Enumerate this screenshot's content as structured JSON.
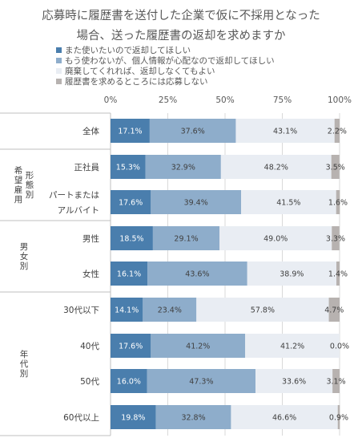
{
  "chart_data": {
    "type": "bar",
    "stacked": true,
    "orientation": "horizontal",
    "title_lines": [
      "応募時に履歴書を送付した企業で仮に不採用となった",
      "場合、送った履歴書の返却を求めますか"
    ],
    "xlim": [
      0,
      100
    ],
    "x_ticks": [
      "0%",
      "25%",
      "50%",
      "75%",
      "100%"
    ],
    "legend_position": "top-left",
    "groups": [
      {
        "label": "",
        "category_indices": [
          0
        ]
      },
      {
        "label": "希望雇用形態別",
        "category_indices": [
          1,
          2
        ]
      },
      {
        "label": "男女別",
        "category_indices": [
          3,
          4
        ]
      },
      {
        "label": "年代別",
        "category_indices": [
          5,
          6,
          7,
          8
        ]
      }
    ],
    "categories": [
      [
        "全体"
      ],
      [
        "正社員"
      ],
      [
        "パートまたは",
        "アルバイト"
      ],
      [
        "男性"
      ],
      [
        "女性"
      ],
      [
        "30代以下"
      ],
      [
        "40代"
      ],
      [
        "50代"
      ],
      [
        "60代以上"
      ]
    ],
    "series": [
      {
        "name": "また使いたいので返却してほしい",
        "color": "#4a7ead",
        "label_color": "#ffffff",
        "values": [
          17.1,
          15.3,
          17.6,
          18.5,
          16.1,
          14.1,
          17.6,
          16.0,
          19.8
        ],
        "labels": [
          "17.1%",
          "15.3%",
          "17.6%",
          "18.5%",
          "16.1%",
          "14.1%",
          "17.6%",
          "16.0%",
          "19.8%"
        ]
      },
      {
        "name": "もう使わないが、個人情報が心配なので返却してほしい",
        "color": "#8eadcb",
        "label_color": "#404040",
        "values": [
          37.6,
          32.9,
          39.4,
          29.1,
          43.6,
          23.4,
          41.2,
          47.3,
          32.8
        ],
        "labels": [
          "37.6%",
          "32.9%",
          "39.4%",
          "29.1%",
          "43.6%",
          "23.4%",
          "41.2%",
          "47.3%",
          "32.8%"
        ]
      },
      {
        "name": "廃棄してくれれば、返却しなくてもよい",
        "color": "#e9edf3",
        "label_color": "#404040",
        "values": [
          43.1,
          48.2,
          41.5,
          49.0,
          38.9,
          57.8,
          41.2,
          33.6,
          46.6
        ],
        "labels": [
          "43.1%",
          "48.2%",
          "41.5%",
          "49.0%",
          "38.9%",
          "57.8%",
          "41.2%",
          "33.6%",
          "46.6%"
        ]
      },
      {
        "name": "履歴書を求めるところには応募しない",
        "color": "#b7b2b0",
        "label_color": "#404040",
        "values": [
          2.2,
          3.5,
          1.6,
          3.3,
          1.4,
          4.7,
          0.0,
          3.1,
          0.9
        ],
        "labels": [
          "2.2%",
          "3.5%",
          "1.6%",
          "3.3%",
          "1.4%",
          "4.7%",
          "0.0%",
          "3.1%",
          "0.9%"
        ]
      }
    ]
  }
}
